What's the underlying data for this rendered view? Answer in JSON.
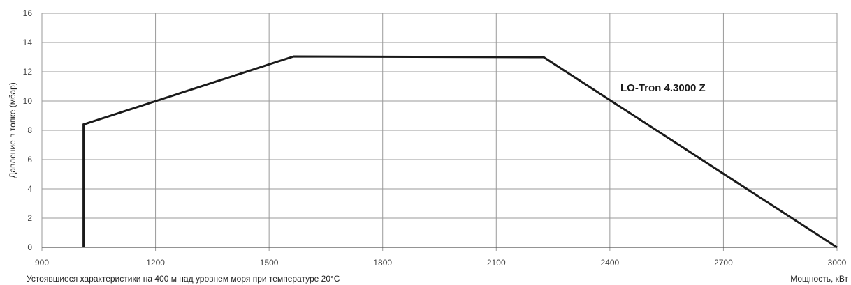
{
  "chart_data": {
    "type": "line",
    "xlabel": "Мощность, кВт",
    "ylabel": "Давление в топке (мбар)",
    "xlim": [
      900,
      3000
    ],
    "ylim": [
      0,
      16
    ],
    "x_ticks": [
      "900",
      "1200",
      "1500",
      "1800",
      "2100",
      "2400",
      "2700",
      "3000"
    ],
    "y_ticks": [
      "0",
      "2",
      "4",
      "6",
      "8",
      "10",
      "12",
      "14",
      "16"
    ],
    "grid": true,
    "series": [
      {
        "name": "LO-Tron 4.3000 Z",
        "points": [
          [
            1010,
            0
          ],
          [
            1010,
            8.4
          ],
          [
            1565,
            13.05
          ],
          [
            2225,
            13.0
          ],
          [
            3000,
            0
          ]
        ]
      }
    ],
    "footnote": "Устоявшиеся характеристики на 400 м над уровнем моря при температуре 20°С"
  }
}
